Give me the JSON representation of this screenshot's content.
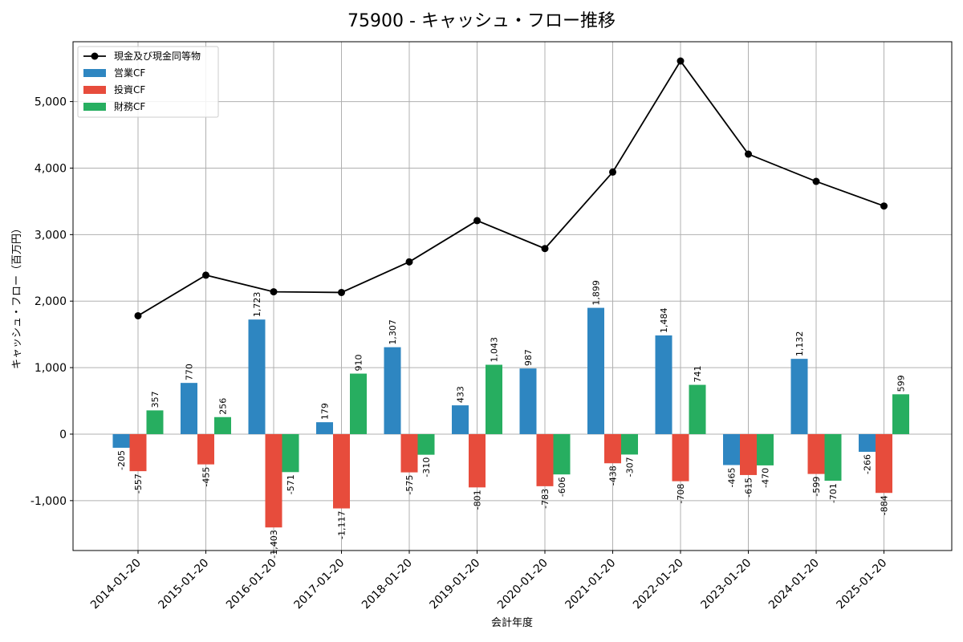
{
  "chart_data": {
    "type": "bar",
    "title": "75900 - キャッシュ・フロー推移",
    "xlabel": "会計年度",
    "ylabel": "キャッシュ・フロー（百万円）",
    "ylim": [
      -1750,
      5900
    ],
    "yticks": [
      -1000,
      0,
      1000,
      2000,
      3000,
      4000,
      5000
    ],
    "ytick_labels": [
      "-1,000",
      "0",
      "1,000",
      "2,000",
      "3,000",
      "4,000",
      "5,000"
    ],
    "grid": true,
    "legend_placement": "top-left",
    "categories": [
      "2014-01-20",
      "2015-01-20",
      "2016-01-20",
      "2017-01-20",
      "2018-01-20",
      "2019-01-20",
      "2020-01-20",
      "2021-01-20",
      "2022-01-20",
      "2023-01-20",
      "2024-01-20",
      "2025-01-20"
    ],
    "series": [
      {
        "name": "営業CF",
        "type": "bar",
        "color": "#2e86c1",
        "values": [
          -205,
          770,
          1723,
          179,
          1307,
          433,
          987,
          1899,
          1484,
          -465,
          1132,
          -266
        ],
        "labels": [
          "-205",
          "770",
          "1,723",
          "179",
          "1,307",
          "433",
          "987",
          "1,899",
          "1,484",
          "-465",
          "1,132",
          "-266"
        ]
      },
      {
        "name": "投資CF",
        "type": "bar",
        "color": "#e74c3c",
        "values": [
          -557,
          -455,
          -1403,
          -1117,
          -575,
          -801,
          -783,
          -438,
          -708,
          -615,
          -599,
          -884
        ],
        "labels": [
          "-557",
          "-455",
          "-1,403",
          "-1,117",
          "-575",
          "-801",
          "-783",
          "-438",
          "-708",
          "-615",
          "-599",
          "-884"
        ]
      },
      {
        "name": "財務CF",
        "type": "bar",
        "color": "#27ae60",
        "values": [
          357,
          256,
          -571,
          910,
          -310,
          1043,
          -606,
          -307,
          741,
          -470,
          -701,
          599
        ],
        "labels": [
          "357",
          "256",
          "-571",
          "910",
          "-310",
          "1,043",
          "-606",
          "-307",
          "741",
          "-470",
          "-701",
          "599"
        ]
      },
      {
        "name": "現金及び現金同等物",
        "type": "line",
        "color": "#000000",
        "values": [
          1780,
          2390,
          2140,
          2130,
          2590,
          3210,
          2790,
          3940,
          5610,
          4210,
          3800,
          3430
        ]
      }
    ]
  }
}
